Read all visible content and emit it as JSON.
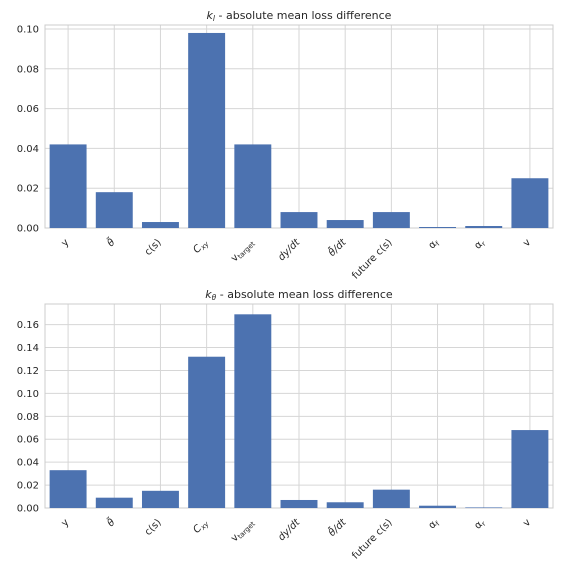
{
  "chart_data": [
    {
      "type": "bar",
      "title": "k_l - absolute mean loss difference",
      "title_parts": {
        "symbol": "k",
        "subscript": "l",
        "rest": " - absolute mean loss difference"
      },
      "categories": [
        "y",
        "θ̃",
        "c(s)",
        "C_xy",
        "v_target",
        "dy/dt",
        "θ̃/dt",
        "future c(s)",
        "α_f",
        "α_r",
        "v"
      ],
      "values": [
        0.042,
        0.018,
        0.003,
        0.098,
        0.042,
        0.008,
        0.004,
        0.008,
        0.0005,
        0.001,
        0.025
      ],
      "yticks": [
        "0.00",
        "0.02",
        "0.04",
        "0.06",
        "0.08",
        "0.10"
      ],
      "ylim": [
        0,
        0.102
      ],
      "xlabel": "",
      "ylabel": "",
      "grid": true,
      "bar_color": "#4c72b0"
    },
    {
      "type": "bar",
      "title": "k_θ - absolute mean loss difference",
      "title_parts": {
        "symbol": "k",
        "subscript": "θ",
        "rest": " - absolute mean loss difference"
      },
      "categories": [
        "y",
        "θ̃",
        "c(s)",
        "C_xy",
        "v_target",
        "dy/dt",
        "θ̃/dt",
        "future c(s)",
        "α_f",
        "α_r",
        "v"
      ],
      "values": [
        0.033,
        0.009,
        0.015,
        0.132,
        0.169,
        0.007,
        0.005,
        0.016,
        0.002,
        0.0005,
        0.068
      ],
      "yticks": [
        "0.00",
        "0.02",
        "0.04",
        "0.06",
        "0.08",
        "0.10",
        "0.12",
        "0.14",
        "0.16"
      ],
      "ylim": [
        0,
        0.178
      ],
      "xlabel": "",
      "ylabel": "",
      "grid": true,
      "bar_color": "#4c72b0"
    }
  ]
}
